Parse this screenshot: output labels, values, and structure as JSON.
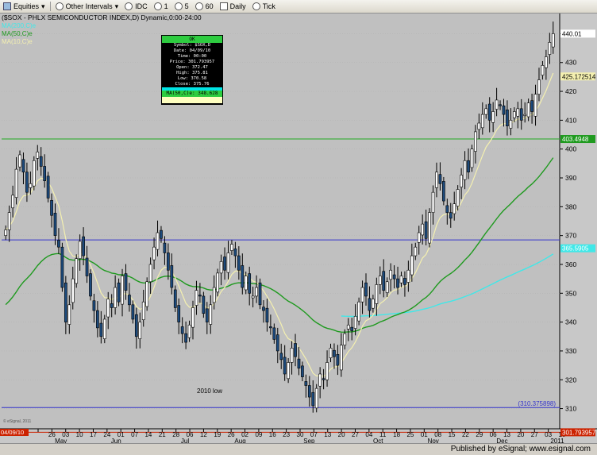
{
  "toolbar": {
    "equities_label": "Equities",
    "other_intervals_label": "Other Intervals",
    "idc_label": "IDC",
    "int1_label": "1",
    "int5_label": "5",
    "int60_label": "60",
    "daily_label": "Daily",
    "tick_label": "Tick"
  },
  "chart_title": "($SOX - PHLX SEMICONDUCTOR INDEX,D) Dynamic,0:00-24:00",
  "legend": {
    "ma200": "MA(200,C)e",
    "ma50": "MA(50,C)e",
    "ma10": "MA(10,C)e"
  },
  "data_box": {
    "header": "OK",
    "symbol": "Symbol: $SOX,D",
    "date": "Date: 04/09/10",
    "time": "Time: 00:00",
    "price": "Price: 301.793957",
    "open": "Open: 372.47",
    "high": "High: 375.81",
    "low": "Low: 370.58",
    "close": "Close: 375.76",
    "ma50": "MA(50,C)e: 348.628"
  },
  "annotations": {
    "low_2010": "2010 low"
  },
  "right_labels": {
    "last_price": "440.01",
    "ma10_value": "425.172514",
    "ma50_value": "403.4948",
    "ma200_value": "365.5905",
    "low_value": "(310.375898)",
    "cursor_value": "301.793957"
  },
  "cursor_date": "04/09/10",
  "published": "Published by eSignal; www.esignal.com",
  "copyright": "© eSignal, 2011",
  "colors": {
    "plot_bg": "#c0c0c0",
    "up_candle": "#ffffff",
    "down_candle": "#1c4a7c",
    "ma10": "#f4f0b0",
    "ma50": "#1f9a1f",
    "ma200": "#40e8e8",
    "h_line_blue": "#3333cc",
    "h_line_green": "#22aa22",
    "cursor_red": "#cc2200"
  },
  "chart_data": {
    "type": "candlestick",
    "title": "($SOX - PHLX SEMICONDUCTOR INDEX,D) Dynamic,0:00-24:00",
    "ylim": [
      303,
      447
    ],
    "yticks": [
      310,
      320,
      330,
      340,
      350,
      360,
      370,
      380,
      390,
      400,
      410,
      420,
      430,
      440
    ],
    "date_ticks": [
      "19",
      "26",
      "03",
      "10",
      "17",
      "24",
      "01",
      "07",
      "14",
      "21",
      "28",
      "06",
      "12",
      "19",
      "26",
      "02",
      "09",
      "16",
      "23",
      "30",
      "07",
      "13",
      "20",
      "27",
      "04",
      "11",
      "18",
      "25",
      "01",
      "08",
      "15",
      "22",
      "29",
      "06",
      "13",
      "20",
      "27",
      "03",
      "10"
    ],
    "month_labels": [
      "May",
      "Jun",
      "Jul",
      "Aug",
      "Sep",
      "Oct",
      "Nov",
      "Dec",
      "2011"
    ],
    "closes": [
      372,
      378,
      384,
      393,
      398,
      392,
      385,
      388,
      396,
      399,
      394,
      389,
      383,
      377,
      370,
      366,
      352,
      340,
      346,
      355,
      362,
      368,
      363,
      356,
      349,
      344,
      338,
      335,
      341,
      348,
      345,
      352,
      347,
      356,
      351,
      346,
      341,
      335,
      340,
      347,
      354,
      360,
      366,
      371,
      369,
      364,
      358,
      352,
      345,
      340,
      336,
      333,
      339,
      345,
      351,
      349,
      343,
      340,
      346,
      352,
      357,
      361,
      358,
      364,
      367,
      363,
      358,
      352,
      356,
      350,
      349,
      352,
      346,
      344,
      340,
      338,
      334,
      330,
      327,
      322,
      326,
      331,
      328,
      324,
      321,
      318,
      314,
      311,
      317,
      322,
      320,
      326,
      331,
      328,
      325,
      332,
      336,
      339,
      337,
      342,
      347,
      352,
      349,
      344,
      348,
      353,
      356,
      351,
      354,
      358,
      355,
      352,
      356,
      353,
      358,
      363,
      366,
      371,
      374,
      369,
      378,
      385,
      392,
      388,
      382,
      378,
      376,
      381,
      386,
      391,
      396,
      392,
      400,
      406,
      409,
      412,
      414,
      410,
      413,
      417,
      415,
      412,
      408,
      410,
      413,
      414,
      410,
      412,
      416,
      413,
      419,
      424,
      429,
      432,
      437,
      440
    ],
    "horizontal_levels": [
      {
        "value": 403.5,
        "color": "green"
      },
      {
        "value": 368.5,
        "color": "blue"
      },
      {
        "value": 310.38,
        "color": "blue",
        "label": "2010 low"
      },
      {
        "value": 301.79,
        "color": "red"
      }
    ],
    "moving_averages": [
      {
        "name": "MA(200,C)e",
        "ma": 200
      },
      {
        "name": "MA(50,C)e",
        "ma": 50
      },
      {
        "name": "MA(10,C)e",
        "ma": 10
      }
    ]
  }
}
